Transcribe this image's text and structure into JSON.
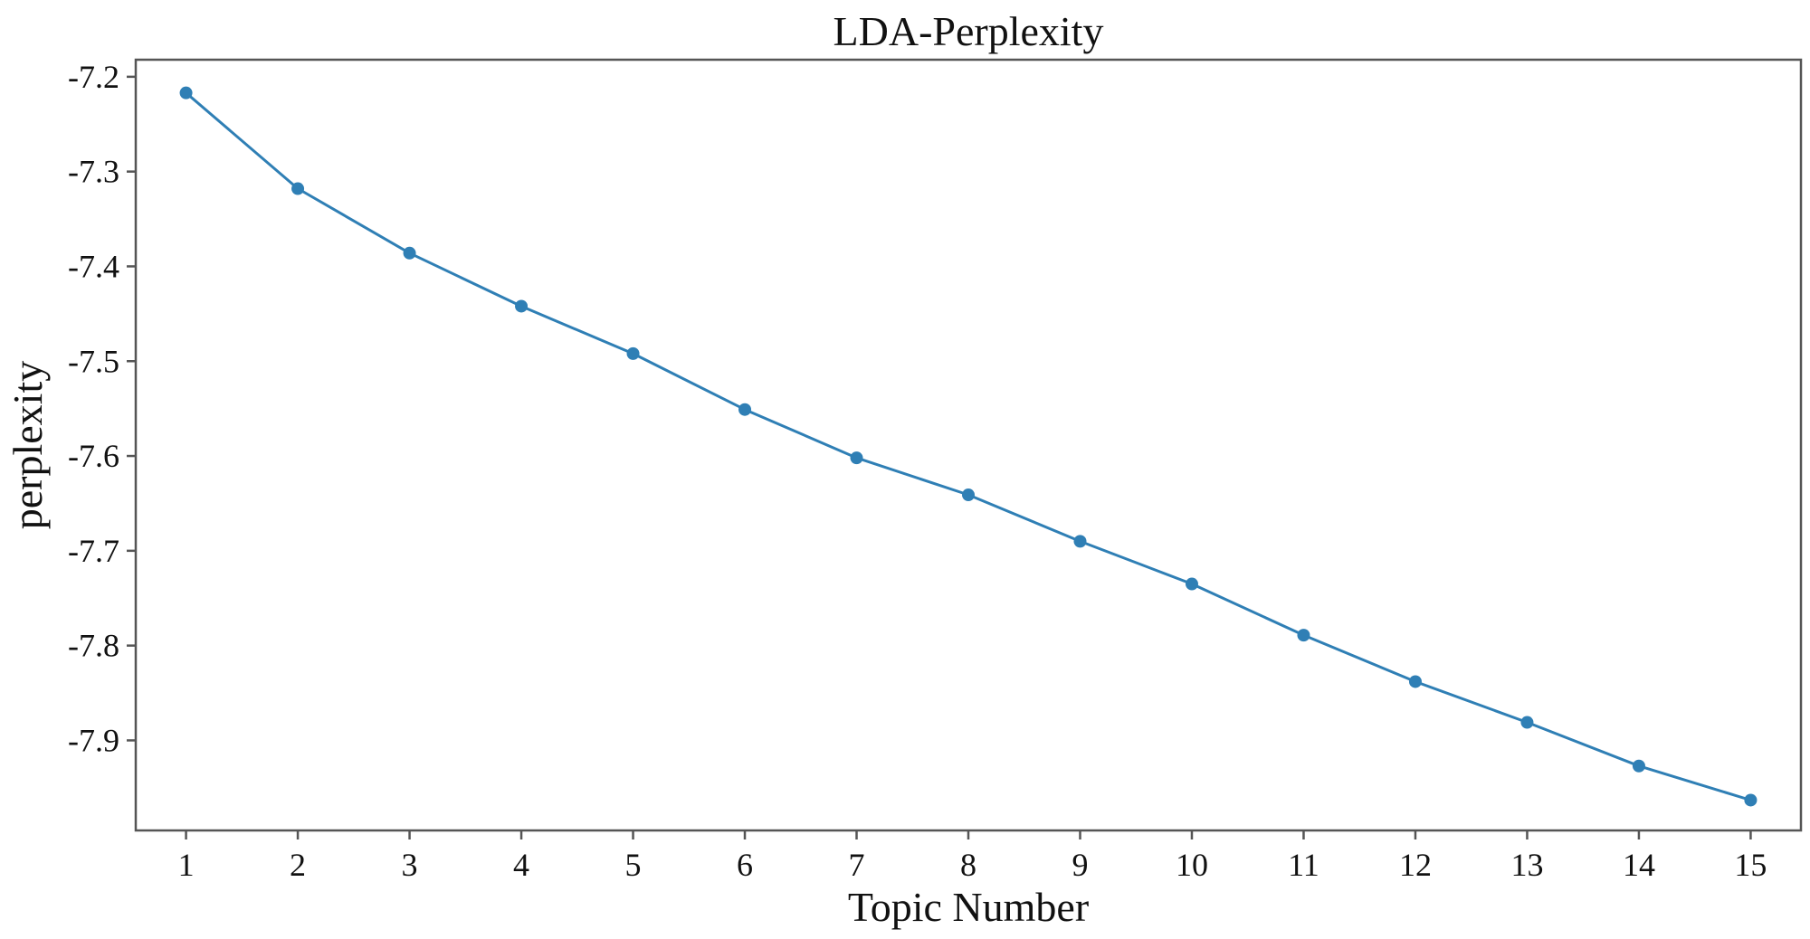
{
  "colors": {
    "background": "#ffffff",
    "line": "#2f7fb5",
    "marker": "#2f7fb5",
    "axes": "#555555",
    "text": "#111111"
  },
  "chart_data": {
    "type": "line",
    "title": "LDA-Perplexity",
    "xlabel": "Topic Number",
    "ylabel": "perplexity",
    "x": [
      1,
      2,
      3,
      4,
      5,
      6,
      7,
      8,
      9,
      10,
      11,
      12,
      13,
      14,
      15
    ],
    "x_ticks": [
      "1",
      "2",
      "3",
      "4",
      "5",
      "6",
      "7",
      "8",
      "9",
      "10",
      "11",
      "12",
      "13",
      "14",
      "15"
    ],
    "y_ticks": [
      "-7.2",
      "-7.3",
      "-7.4",
      "-7.5",
      "-7.6",
      "-7.7",
      "-7.8",
      "-7.9"
    ],
    "y_tick_values": [
      -7.2,
      -7.3,
      -7.4,
      -7.5,
      -7.6,
      -7.7,
      -7.8,
      -7.9
    ],
    "series": [
      {
        "values": [
          -7.217,
          -7.318,
          -7.386,
          -7.442,
          -7.492,
          -7.551,
          -7.602,
          -7.641,
          -7.69,
          -7.735,
          -7.789,
          -7.838,
          -7.881,
          -7.927,
          -7.963
        ]
      }
    ],
    "xlim": [
      0.55,
      15.45
    ],
    "ylim": [
      -7.995,
      -7.182
    ],
    "grid": false,
    "legend": "none"
  }
}
